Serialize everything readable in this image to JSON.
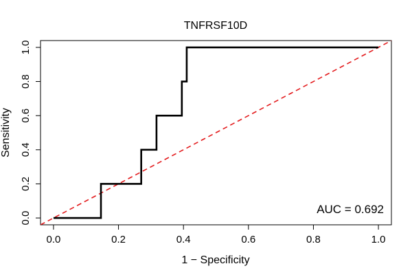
{
  "chart_data": {
    "type": "line",
    "title": "TNFRSF10D",
    "xlabel": "1 − Specificity",
    "ylabel": "Sensitivity",
    "xlim": [
      -0.04,
      1.04
    ],
    "ylim": [
      -0.04,
      1.04
    ],
    "x_ticks": [
      0.0,
      0.2,
      0.4,
      0.6,
      0.8,
      1.0
    ],
    "x_tick_labels": [
      "0.0",
      "0.2",
      "0.4",
      "0.6",
      "0.8",
      "1.0"
    ],
    "y_ticks": [
      0.0,
      0.2,
      0.4,
      0.6,
      0.8,
      1.0
    ],
    "y_tick_labels": [
      "0.0",
      "0.2",
      "0.4",
      "0.6",
      "0.8",
      "1.0"
    ],
    "grid": false,
    "series": [
      {
        "name": "ROC curve",
        "color": "#000000",
        "style": "solid",
        "x": [
          0.0,
          0.146,
          0.146,
          0.27,
          0.27,
          0.317,
          0.317,
          0.395,
          0.395,
          0.41,
          0.41,
          1.0
        ],
        "y": [
          0.0,
          0.0,
          0.2,
          0.2,
          0.4,
          0.4,
          0.6,
          0.6,
          0.8,
          0.8,
          1.0,
          1.0
        ]
      },
      {
        "name": "Reference diagonal",
        "color": "#e31a1c",
        "style": "dashed",
        "x": [
          -0.04,
          1.04
        ],
        "y": [
          -0.04,
          1.04
        ]
      }
    ],
    "annotation": "AUC = 0.692"
  }
}
